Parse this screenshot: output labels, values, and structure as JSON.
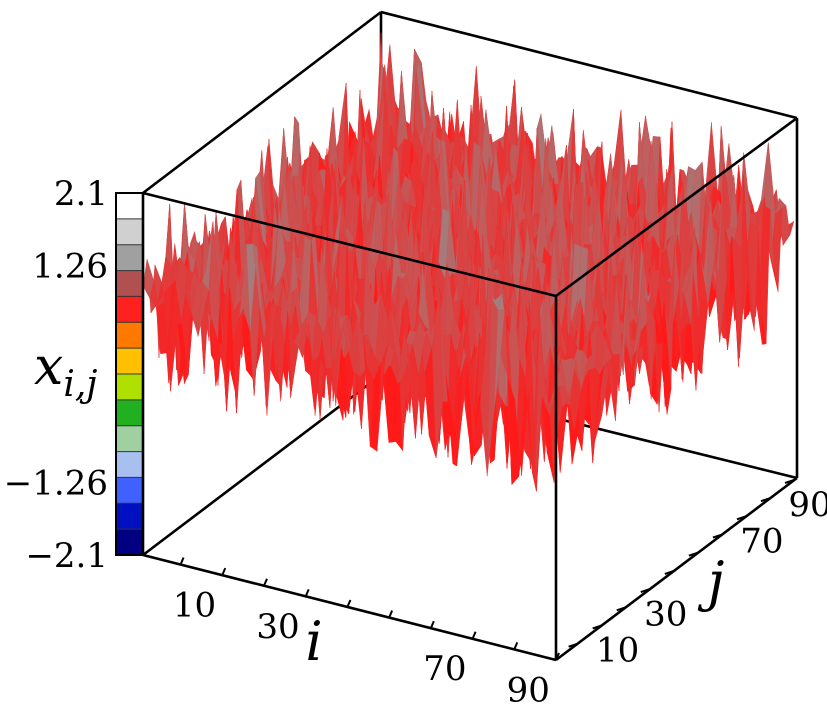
{
  "chart_data": {
    "type": "surface3d",
    "x": {
      "label": "i",
      "ticks": [
        10,
        30,
        70,
        90
      ],
      "range": [
        1,
        100
      ]
    },
    "y": {
      "label": "j",
      "ticks": [
        10,
        30,
        70,
        90
      ],
      "range": [
        1,
        100
      ]
    },
    "z": {
      "label": "x",
      "label_sub": "i,j",
      "range": [
        -2.1,
        2.1
      ]
    },
    "colorbar": {
      "ticks": [
        {
          "value": 2.1,
          "label": "2.1"
        },
        {
          "value": 1.26,
          "label": "1.26"
        },
        {
          "value": -1.26,
          "label": "−1.26"
        },
        {
          "value": -2.1,
          "label": "−2.1"
        }
      ],
      "colors": [
        "#ffffff",
        "#d0d0d0",
        "#a0a0a0",
        "#b05050",
        "#ff2020",
        "#ff7800",
        "#ffc000",
        "#b0e000",
        "#20b020",
        "#a0d0a0",
        "#a8c0f0",
        "#4060ff",
        "#0010c0",
        "#000080"
      ]
    },
    "surface": {
      "mean_level": 0.9,
      "noise_range": [
        -0.3,
        1.9
      ],
      "colors": {
        "high": "#a08080",
        "low": "#ff1a1a"
      }
    },
    "grid": false
  }
}
